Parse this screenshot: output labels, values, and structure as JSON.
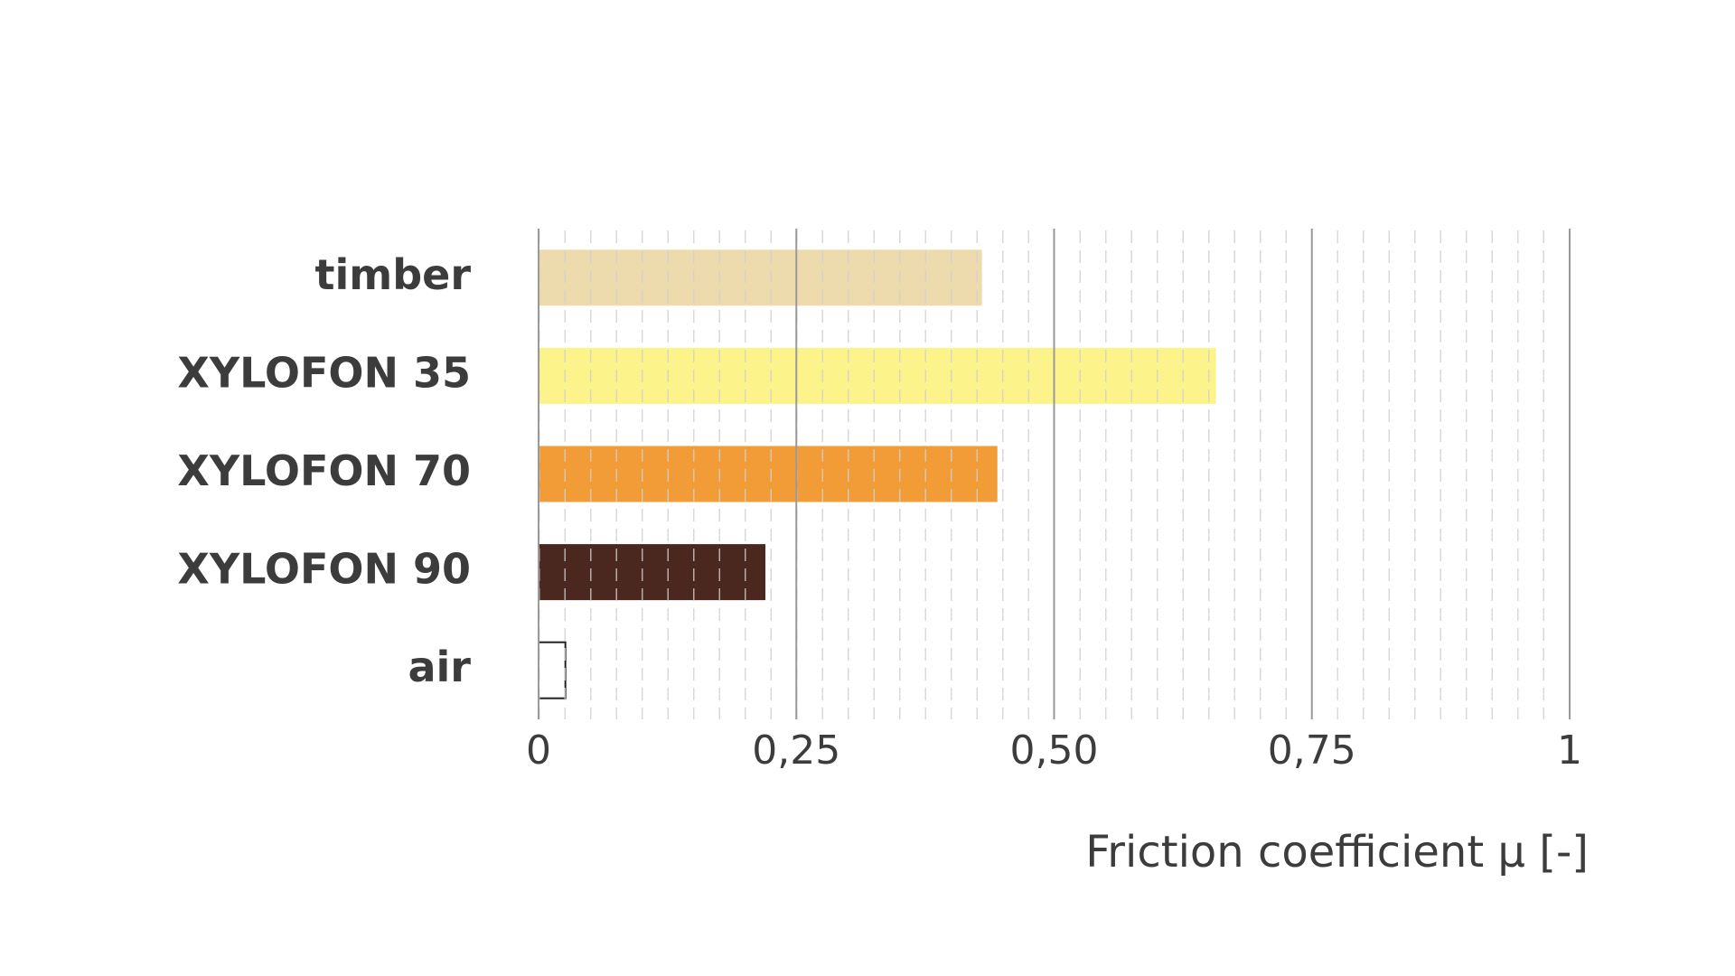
{
  "chart_data": {
    "type": "hbar",
    "categories": [
      "timber",
      "XYLOFON 35",
      "XYLOFON 70",
      "XYLOFON 90",
      "air"
    ],
    "values": [
      0.43,
      0.657,
      0.445,
      0.22,
      0.026
    ],
    "colors": [
      "#eddaad",
      "#fdf38b",
      "#f29c38",
      "#4a2820",
      "#ffffff"
    ],
    "x_label": "Friction coefficient μ [-]",
    "xlim": [
      0,
      1
    ],
    "xticks": [
      0,
      {
        "value": 0.25,
        "label": "0,25"
      },
      {
        "value": 0.5,
        "label": "0,50"
      },
      {
        "value": 0.75,
        "label": "0,75"
      },
      1
    ],
    "grid": true
  }
}
